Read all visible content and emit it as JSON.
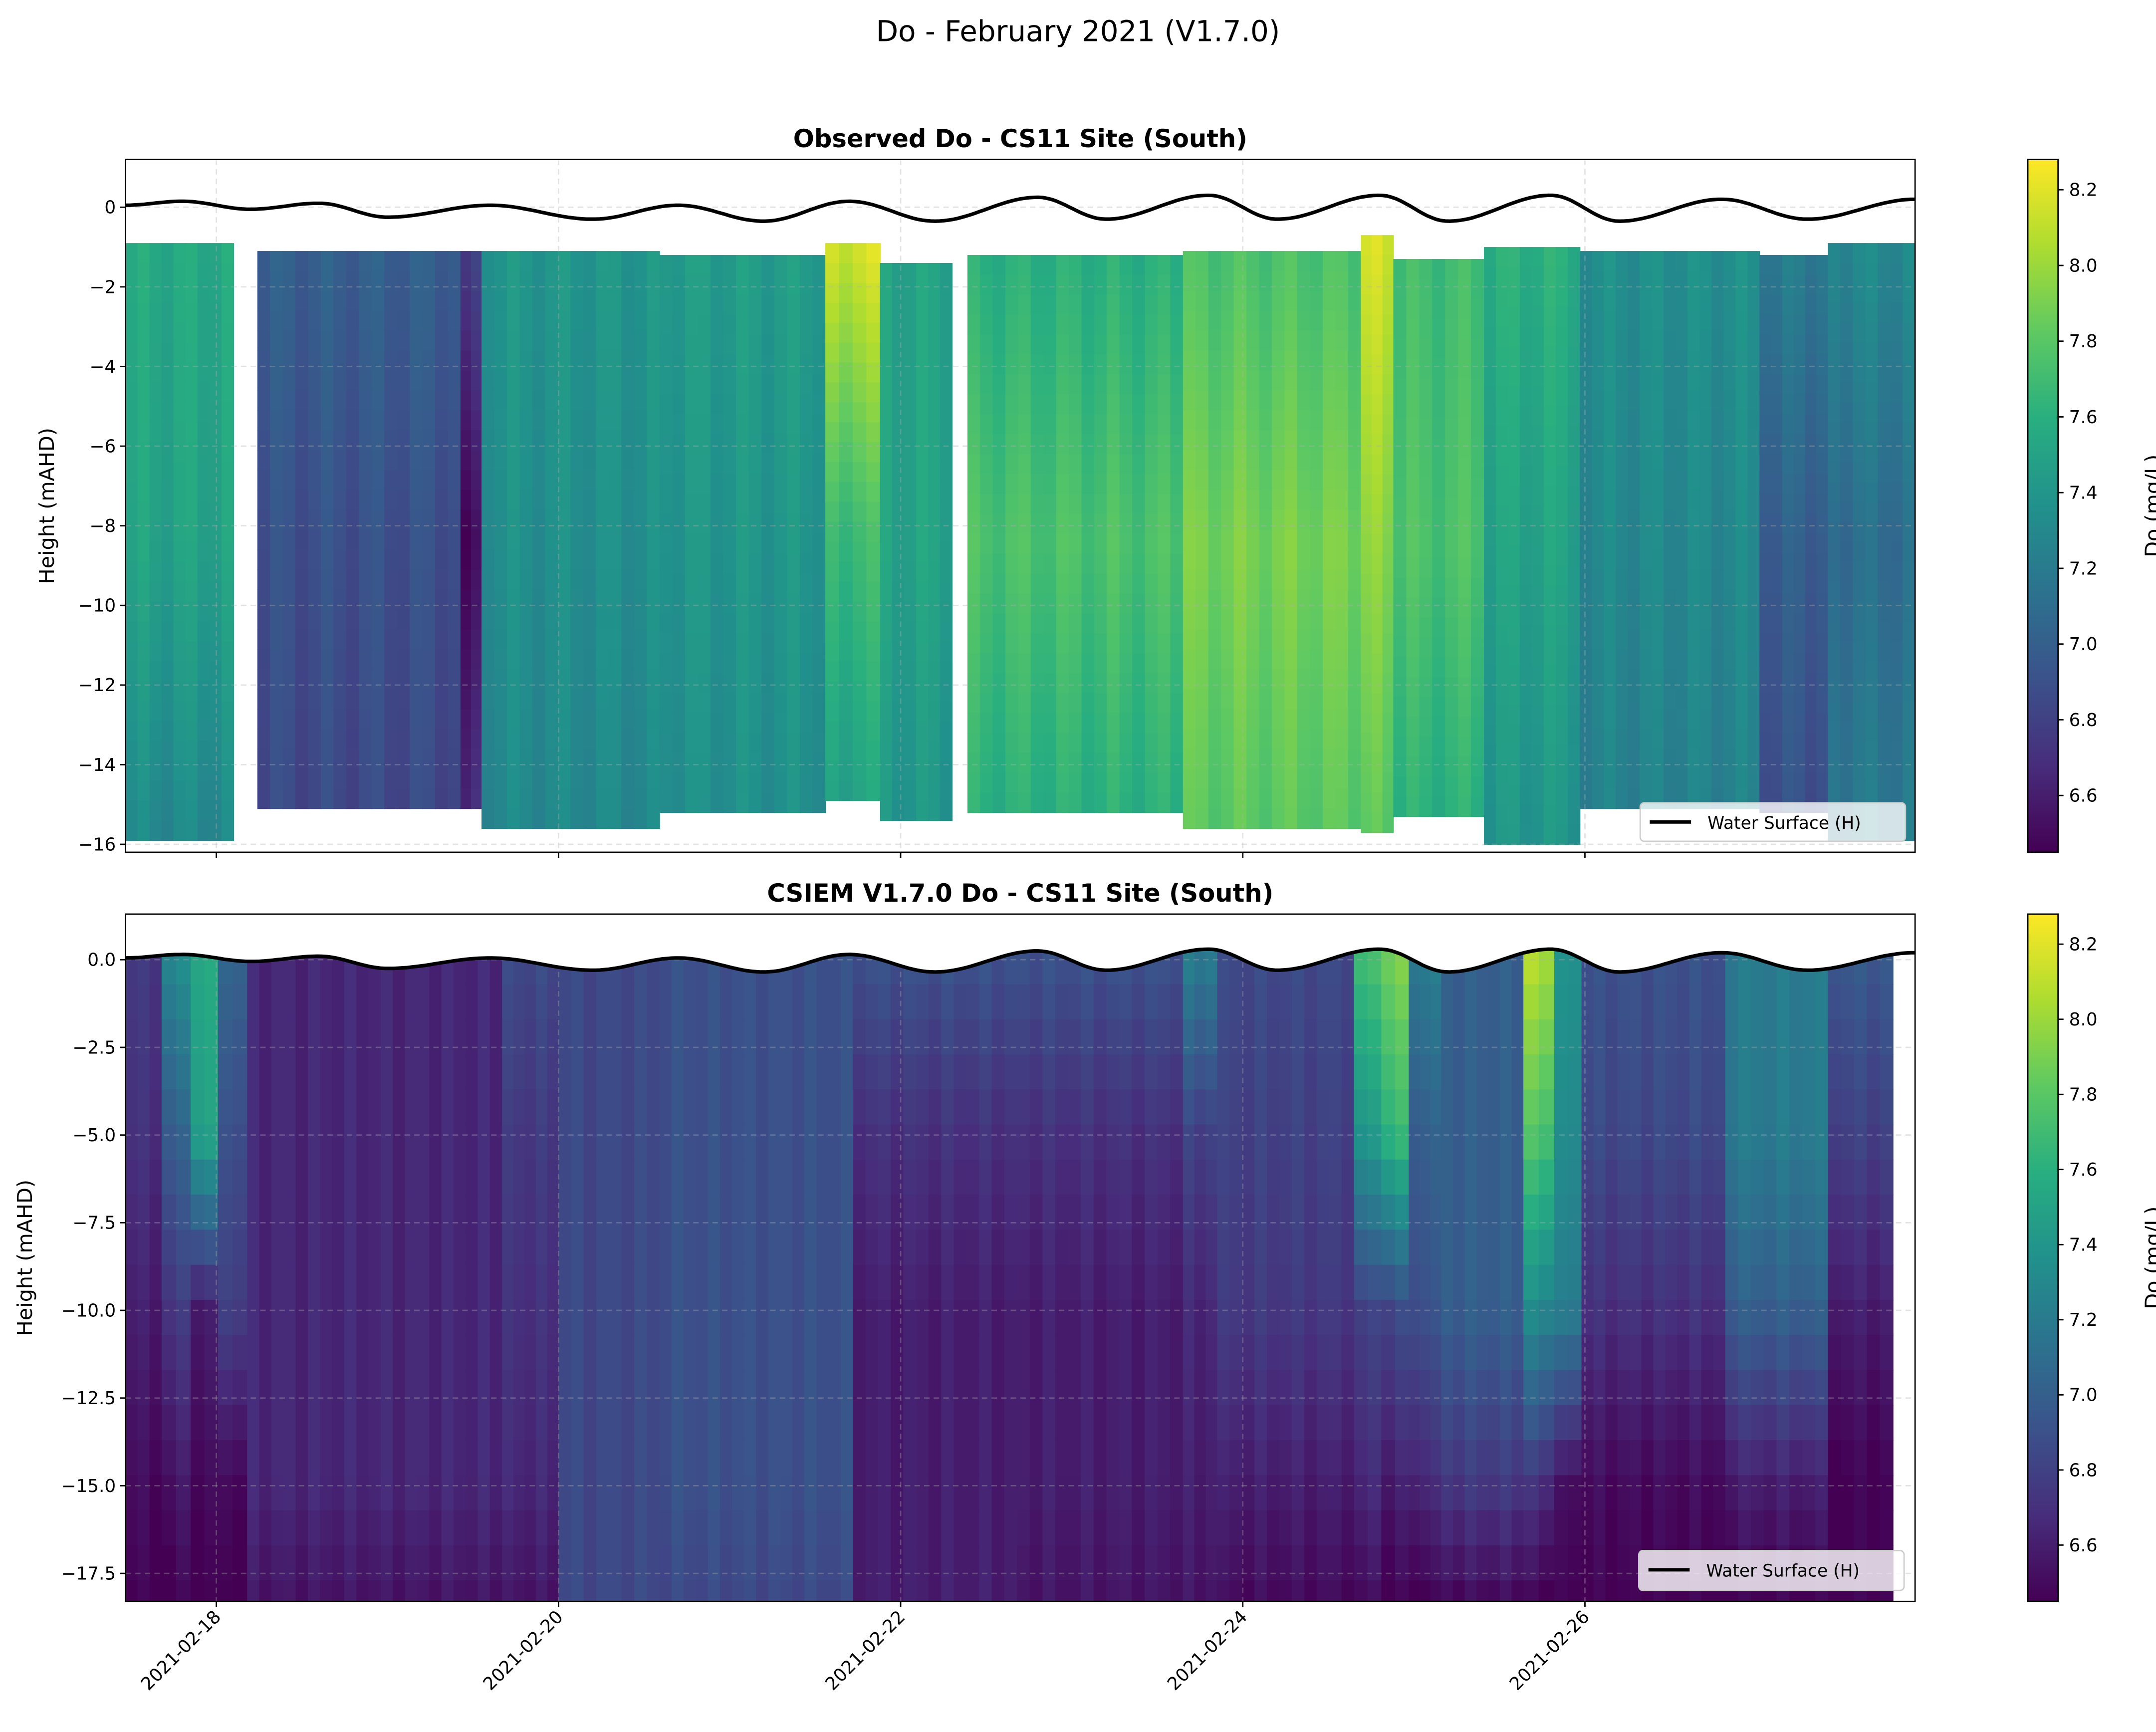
{
  "figure_title": "Do - February 2021 (V1.7.0)",
  "colors": {
    "water_line": "#000000",
    "colormap": "viridis",
    "grid": "#cccccc"
  },
  "chart_data": [
    {
      "type": "heatmap",
      "title": "Observed Do - CS11 Site (South)",
      "ylabel": "Height (mAHD)",
      "xlabel": "",
      "xlim": [
        "2021-02-17T11:15",
        "2021-02-27T22:19"
      ],
      "ylim": [
        -16.2,
        1.2
      ],
      "yticks": [
        0,
        -2,
        -4,
        -6,
        -8,
        -10,
        -12,
        -14,
        -16
      ],
      "ytick_labels": [
        "0",
        "−2",
        "−4",
        "−6",
        "−8",
        "−10",
        "−12",
        "−14",
        "−16"
      ],
      "xticks": [
        "2021-02-18",
        "2021-02-20",
        "2021-02-22",
        "2021-02-24",
        "2021-02-26"
      ],
      "grid": true,
      "colorbar": {
        "label": "Do (mg/L)",
        "range": [
          6.45,
          8.28
        ],
        "ticks": [
          "6.6",
          "6.8",
          "7.0",
          "7.2",
          "7.4",
          "7.6",
          "7.8",
          "8.0",
          "8.2"
        ]
      },
      "legend": {
        "label": "Water Surface (H)",
        "placement": "lower right"
      },
      "columns": [
        {
          "t0": "2021-02-17T11:15",
          "t1": "2021-02-18T02:24",
          "top": -0.9,
          "bottom": -15.5,
          "v": [
            7.55,
            7.5,
            7.3
          ]
        },
        {
          "t0": "2021-02-18T05:45",
          "t1": "2021-02-19T10:15",
          "top": -1.1,
          "bottom": -15.0,
          "v": [
            7.0,
            6.9,
            6.85
          ]
        },
        {
          "t0": "2021-02-19T10:15",
          "t1": "2021-02-19T13:12",
          "top": -1.1,
          "bottom": -15.1,
          "v": [
            6.8,
            6.5,
            6.7
          ]
        },
        {
          "t0": "2021-02-19T13:12",
          "t1": "2021-02-20T14:10",
          "top": -1.1,
          "bottom": -15.2,
          "v": [
            7.4,
            7.35,
            7.3
          ]
        },
        {
          "t0": "2021-02-20T14:10",
          "t1": "2021-02-21T13:26",
          "top": -1.2,
          "bottom": -15.1,
          "v": [
            7.45,
            7.4,
            7.35
          ]
        },
        {
          "t0": "2021-02-21T13:26",
          "t1": "2021-02-21T21:07",
          "top": -0.9,
          "bottom": -14.8,
          "v": [
            8.15,
            7.7,
            7.5
          ]
        },
        {
          "t0": "2021-02-21T21:07",
          "t1": "2021-02-22T07:12",
          "top": -1.4,
          "bottom": -15.2,
          "v": [
            7.5,
            7.5,
            7.4
          ]
        },
        {
          "t0": "2021-02-22T09:22",
          "t1": "2021-02-23T15:36",
          "top": -1.2,
          "bottom": -15.0,
          "v": [
            7.6,
            7.75,
            7.6
          ]
        },
        {
          "t0": "2021-02-23T15:36",
          "t1": "2021-02-24T16:34",
          "top": -1.1,
          "bottom": -15.5,
          "v": [
            7.75,
            7.9,
            7.8
          ]
        },
        {
          "t0": "2021-02-24T16:34",
          "t1": "2021-02-24T21:07",
          "top": -0.7,
          "bottom": -15.3,
          "v": [
            8.15,
            7.95,
            7.8
          ]
        },
        {
          "t0": "2021-02-24T21:07",
          "t1": "2021-02-25T09:50",
          "top": -1.3,
          "bottom": -15.2,
          "v": [
            7.7,
            7.75,
            7.6
          ]
        },
        {
          "t0": "2021-02-25T09:50",
          "t1": "2021-02-25T23:17",
          "top": -1.0,
          "bottom": -15.6,
          "v": [
            7.6,
            7.5,
            7.4
          ]
        },
        {
          "t0": "2021-02-25T23:17",
          "t1": "2021-02-27T00:29",
          "top": -1.1,
          "bottom": -15.0,
          "v": [
            7.35,
            7.3,
            7.25
          ]
        },
        {
          "t0": "2021-02-27T00:29",
          "t1": "2021-02-27T10:05",
          "top": -1.2,
          "bottom": -15.0,
          "v": [
            7.2,
            7.0,
            6.9
          ]
        },
        {
          "t0": "2021-02-27T10:05",
          "t1": "2021-02-27T22:19",
          "top": -0.9,
          "bottom": -15.6,
          "v": [
            7.3,
            7.1,
            7.2
          ]
        }
      ]
    },
    {
      "type": "heatmap",
      "title": "CSIEM V1.7.0 Do - CS11 Site (South)",
      "ylabel": "Height (mAHD)",
      "xlabel": "",
      "xlim": [
        "2021-02-17T11:15",
        "2021-02-27T22:19"
      ],
      "ylim": [
        -18.3,
        1.3
      ],
      "yticks": [
        0,
        -2.5,
        -5,
        -7.5,
        -10,
        -12.5,
        -15,
        -17.5
      ],
      "ytick_labels": [
        "0.0",
        "−2.5",
        "−5.0",
        "−7.5",
        "−10.0",
        "−12.5",
        "−15.0",
        "−17.5"
      ],
      "xticks": [
        "2021-02-18",
        "2021-02-20",
        "2021-02-22",
        "2021-02-24",
        "2021-02-26"
      ],
      "xtick_labels": [
        "2021-02-18",
        "2021-02-20",
        "2021-02-22",
        "2021-02-24",
        "2021-02-26"
      ],
      "grid": true,
      "colorbar": {
        "label": "Do (mg/L)",
        "range": [
          6.45,
          8.28
        ],
        "ticks": [
          "6.6",
          "6.8",
          "7.0",
          "7.2",
          "7.4",
          "7.6",
          "7.8",
          "8.0",
          "8.2"
        ]
      },
      "legend": {
        "label": "Water Surface (H)",
        "placement": "lower right"
      },
      "profile_depths": [
        0,
        -5,
        -10,
        -15,
        -18.3
      ],
      "columns": [
        {
          "t0": "2021-02-17T11:15",
          "t1": "2021-02-17T16:19",
          "v": [
            6.75,
            6.7,
            6.6,
            6.5,
            6.45
          ]
        },
        {
          "t0": "2021-02-17T16:19",
          "t1": "2021-02-17T20:24",
          "v": [
            7.3,
            7.0,
            6.75,
            6.55,
            6.45
          ]
        },
        {
          "t0": "2021-02-17T20:24",
          "t1": "2021-02-18T00:14",
          "v": [
            7.55,
            7.5,
            6.6,
            6.5,
            6.45
          ]
        },
        {
          "t0": "2021-02-18T00:14",
          "t1": "2021-02-18T04:19",
          "v": [
            7.05,
            6.9,
            6.8,
            6.5,
            6.45
          ]
        },
        {
          "t0": "2021-02-18T04:19",
          "t1": "2021-02-19T16:05",
          "v": [
            6.65,
            6.65,
            6.65,
            6.65,
            6.55
          ]
        },
        {
          "t0": "2021-02-19T16:05",
          "t1": "2021-02-20T00:00",
          "v": [
            6.85,
            6.75,
            6.7,
            6.65,
            6.55
          ]
        },
        {
          "t0": "2021-02-20T00:00",
          "t1": "2021-02-20T14:10",
          "v": [
            6.85,
            6.85,
            6.85,
            6.85,
            6.85
          ]
        },
        {
          "t0": "2021-02-20T14:10",
          "t1": "2021-02-21T17:17",
          "v": [
            6.9,
            6.9,
            6.9,
            6.9,
            6.85
          ]
        },
        {
          "t0": "2021-02-21T17:17",
          "t1": "2021-02-22T16:19",
          "v": [
            6.9,
            6.7,
            6.6,
            6.6,
            6.6
          ]
        },
        {
          "t0": "2021-02-22T16:19",
          "t1": "2021-02-23T15:36",
          "v": [
            6.9,
            6.7,
            6.6,
            6.6,
            6.55
          ]
        },
        {
          "t0": "2021-02-23T15:36",
          "t1": "2021-02-23T20:24",
          "v": [
            7.2,
            6.8,
            6.65,
            6.6,
            6.55
          ]
        },
        {
          "t0": "2021-02-23T20:24",
          "t1": "2021-02-24T15:36",
          "v": [
            6.85,
            6.8,
            6.75,
            6.6,
            6.5
          ]
        },
        {
          "t0": "2021-02-24T15:36",
          "t1": "2021-02-24T19:26",
          "v": [
            7.7,
            7.4,
            6.8,
            6.65,
            6.5
          ]
        },
        {
          "t0": "2021-02-24T19:26",
          "t1": "2021-02-24T23:17",
          "v": [
            7.9,
            7.65,
            6.85,
            6.6,
            6.45
          ]
        },
        {
          "t0": "2021-02-24T23:17",
          "t1": "2021-02-25T03:50",
          "v": [
            7.2,
            7.0,
            6.9,
            6.65,
            6.45
          ]
        },
        {
          "t0": "2021-02-25T03:50",
          "t1": "2021-02-25T15:22",
          "v": [
            7.0,
            7.0,
            7.0,
            6.75,
            6.5
          ]
        },
        {
          "t0": "2021-02-25T15:22",
          "t1": "2021-02-25T19:41",
          "v": [
            8.05,
            7.75,
            7.3,
            6.7,
            6.45
          ]
        },
        {
          "t0": "2021-02-25T19:41",
          "t1": "2021-02-25T23:31",
          "v": [
            7.35,
            7.3,
            7.2,
            6.5,
            6.45
          ]
        },
        {
          "t0": "2021-02-25T23:31",
          "t1": "2021-02-26T19:41",
          "v": [
            6.9,
            6.85,
            6.7,
            6.5,
            6.45
          ]
        },
        {
          "t0": "2021-02-26T19:41",
          "t1": "2021-02-27T10:05",
          "v": [
            7.2,
            7.2,
            7.0,
            6.6,
            6.45
          ]
        },
        {
          "t0": "2021-02-27T10:05",
          "t1": "2021-02-27T19:12",
          "v": [
            6.95,
            6.8,
            6.6,
            6.45,
            6.45
          ]
        }
      ]
    }
  ],
  "water_surface": [
    [
      "2021-02-17T11:15",
      0.05
    ],
    [
      "2021-02-17T19:12",
      0.15
    ],
    [
      "2021-02-18T04:48",
      -0.05
    ],
    [
      "2021-02-18T14:24",
      0.1
    ],
    [
      "2021-02-19T00:00",
      -0.25
    ],
    [
      "2021-02-19T14:24",
      0.05
    ],
    [
      "2021-02-20T04:48",
      -0.3
    ],
    [
      "2021-02-20T16:48",
      0.05
    ],
    [
      "2021-02-21T04:48",
      -0.35
    ],
    [
      "2021-02-21T16:48",
      0.15
    ],
    [
      "2021-02-22T04:48",
      -0.35
    ],
    [
      "2021-02-22T19:12",
      0.25
    ],
    [
      "2021-02-23T04:48",
      -0.3
    ],
    [
      "2021-02-23T19:12",
      0.3
    ],
    [
      "2021-02-24T04:48",
      -0.3
    ],
    [
      "2021-02-24T19:12",
      0.3
    ],
    [
      "2021-02-25T04:48",
      -0.35
    ],
    [
      "2021-02-25T19:12",
      0.3
    ],
    [
      "2021-02-26T04:48",
      -0.35
    ],
    [
      "2021-02-26T19:12",
      0.2
    ],
    [
      "2021-02-27T07:12",
      -0.3
    ],
    [
      "2021-02-27T22:19",
      0.2
    ]
  ]
}
